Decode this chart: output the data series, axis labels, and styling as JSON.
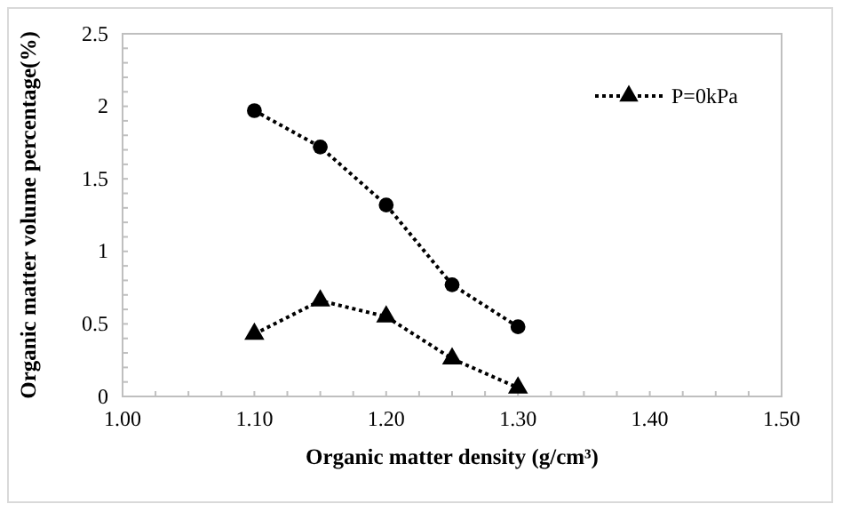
{
  "chart_data": {
    "type": "line",
    "xlabel": "Organic matter density (g/cm³)",
    "ylabel": "Organic matter volume percentage(%)",
    "x": [
      1.1,
      1.15,
      1.2,
      1.25,
      1.3
    ],
    "series": [
      {
        "color": "#000000",
        "marker": "circle",
        "values": [
          1.97,
          1.72,
          1.32,
          0.77,
          0.48
        ]
      },
      {
        "name": "P=0kPa",
        "color": "#000000",
        "marker": "triangle",
        "values": [
          0.43,
          0.66,
          0.55,
          0.26,
          0.06
        ]
      }
    ],
    "xlim": [
      1.0,
      1.5
    ],
    "xticks": [
      {
        "value": 1.0,
        "label": "1.00"
      },
      {
        "value": 1.1,
        "label": "1.10"
      },
      {
        "value": 1.2,
        "label": "1.20"
      },
      {
        "value": 1.3,
        "label": "1.30"
      },
      {
        "value": 1.4,
        "label": "1.40"
      },
      {
        "value": 1.5,
        "label": "1.50"
      }
    ],
    "ylim": [
      0,
      2.5
    ],
    "yticks": [
      0,
      0.5,
      1,
      1.5,
      2,
      2.5
    ],
    "line_style": "dotted",
    "legend": "top right",
    "grid": false
  }
}
